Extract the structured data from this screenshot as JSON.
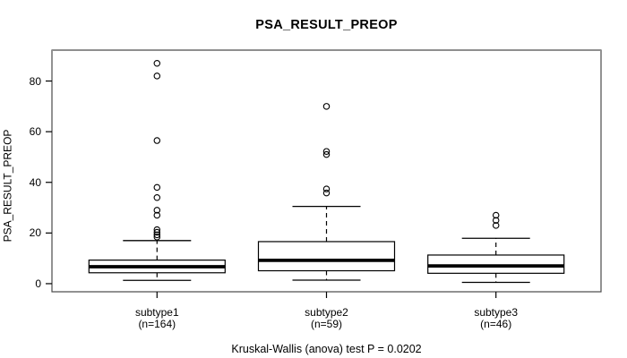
{
  "chart_data": {
    "type": "boxplot",
    "title": "PSA_RESULT_PREOP",
    "ylabel": "PSA_RESULT_PREOP",
    "caption": "Kruskal-Wallis (anova) test P = 0.0202",
    "y_ticks": [
      0,
      20,
      40,
      60,
      80
    ],
    "ylim": [
      -3.2,
      92.2
    ],
    "xlim": [
      0.38,
      3.62
    ],
    "grid": false,
    "legend": "none",
    "groups": [
      {
        "label": "subtype1",
        "sublabel": "(n=164)",
        "n": 164,
        "position": 1,
        "whisker_low": 1.3,
        "q1": 4.3,
        "median": 6.7,
        "q3": 9.3,
        "whisker_high": 17.0,
        "outliers": [
          18.4,
          19.3,
          20.3,
          21.3,
          27,
          29,
          34,
          38,
          56.5,
          82,
          87
        ]
      },
      {
        "label": "subtype2",
        "sublabel": "(n=59)",
        "n": 59,
        "position": 2,
        "whisker_low": 1.4,
        "q1": 5.1,
        "median": 9.2,
        "q3": 16.6,
        "whisker_high": 30.5,
        "outliers": [
          35.8,
          37.4,
          51,
          52.2,
          70
        ]
      },
      {
        "label": "subtype3",
        "sublabel": "(n=46)",
        "n": 46,
        "position": 3,
        "whisker_low": 0.5,
        "q1": 4.1,
        "median": 7.0,
        "q3": 11.3,
        "whisker_high": 17.9,
        "outliers": [
          23,
          25,
          27
        ]
      }
    ],
    "colors": {
      "stroke": "#000000",
      "box_fill": "#ffffff",
      "frame": "#4a4a4a",
      "frame_top": "#8f8f8f",
      "background": "#ffffff"
    }
  }
}
